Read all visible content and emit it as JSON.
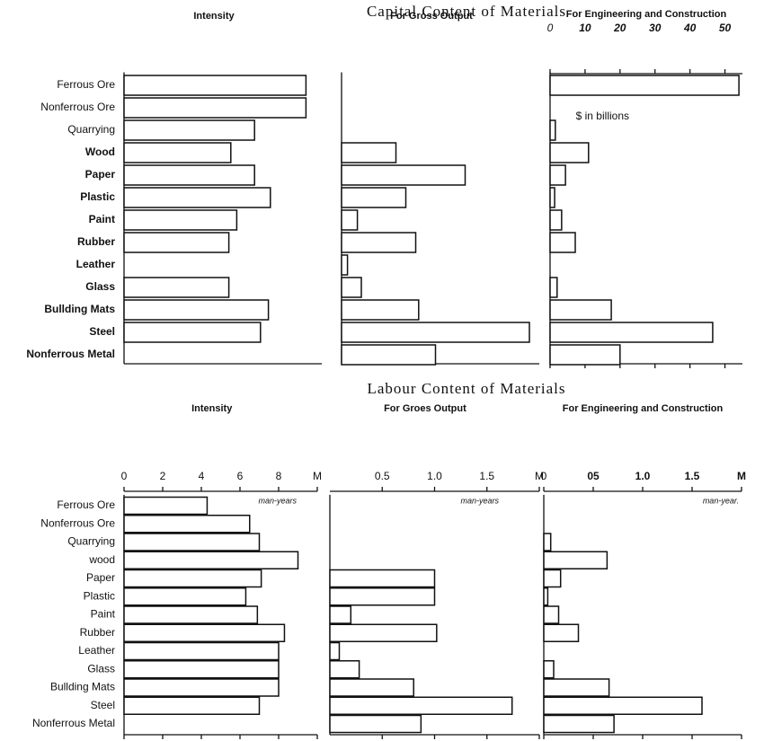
{
  "chart_data": [
    {
      "type": "bar",
      "title": "Capital Content of Materials",
      "categories": [
        "Ferrous Ore",
        "Nonferrous  Ore",
        "Quarrying",
        "Wood",
        "Paper",
        "Plastic",
        "Paint",
        "Rubber",
        "Leather",
        "Glass",
        "Bullding  Mats",
        "Steel",
        "Nonferrous  Metal"
      ],
      "panels": [
        {
          "title": "Intensity",
          "xlim": [
            0,
            10
          ],
          "values": [
            9.2,
            9.2,
            6.6,
            5.4,
            6.6,
            7.4,
            5.7,
            5.3,
            null,
            5.3,
            7.3,
            6.9,
            null
          ]
        },
        {
          "title": "For Gross  Output",
          "xlim": [
            0,
            2
          ],
          "values": [
            null,
            null,
            null,
            0.55,
            1.25,
            0.65,
            0.16,
            0.75,
            0.06,
            0.2,
            0.78,
            1.9,
            0.95
          ]
        },
        {
          "title": "For Engineering and Construction",
          "xlim": [
            0,
            55
          ],
          "xticks": [
            0,
            10,
            20,
            30,
            40,
            50
          ],
          "unit": "$ in billions",
          "values": [
            54,
            null,
            1.5,
            11,
            4.4,
            1.3,
            3.3,
            7.2,
            null,
            2,
            17.5,
            46.5,
            20
          ]
        }
      ]
    },
    {
      "type": "bar",
      "title": "Labour  Content  of  Materials",
      "categories": [
        "Ferrous Ore",
        "Nonferrous Ore",
        "Quarrying",
        "wood",
        "Paper",
        "Plastic",
        "Paint",
        "Rubber",
        "Leather",
        "Glass",
        "Bullding Mats",
        "Steel",
        "Nonferrous Metal"
      ],
      "panels": [
        {
          "title": "Intensity",
          "xlim": [
            0,
            10
          ],
          "xticks": [
            0,
            2,
            4,
            6,
            8,
            {
              "value": 10,
              "label": "M"
            }
          ],
          "unit": "man-years",
          "values": [
            4.3,
            6.5,
            7,
            9,
            7.1,
            6.3,
            6.9,
            8.3,
            8,
            8,
            8,
            7,
            null
          ]
        },
        {
          "title": "For Groes Output",
          "xlim": [
            0,
            2
          ],
          "xticks": [
            0.5,
            {
              "value": 1,
              "label": "1.0"
            },
            1.5,
            {
              "value": 2,
              "label": "M"
            }
          ],
          "unit": "man-years",
          "values": [
            null,
            null,
            null,
            null,
            1,
            1,
            0.2,
            1.02,
            0.09,
            0.28,
            0.8,
            1.74,
            0.87
          ]
        },
        {
          "title": "For Engineering  and  Construction",
          "xlim": [
            0,
            2
          ],
          "xticks": [
            0,
            {
              "value": 0.5,
              "label": "05"
            },
            {
              "value": 1,
              "label": "1.0"
            },
            1.5,
            {
              "value": 2,
              "label": "M"
            }
          ],
          "unit": "man-year.",
          "values": [
            null,
            null,
            0.07,
            0.64,
            0.17,
            0.04,
            0.15,
            0.35,
            null,
            0.1,
            0.66,
            1.6,
            0.71
          ]
        }
      ]
    }
  ]
}
